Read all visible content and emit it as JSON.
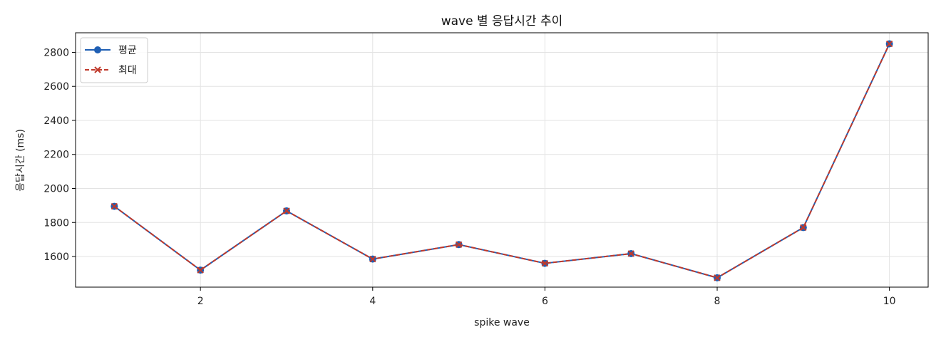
{
  "chart_data": {
    "type": "line",
    "title": "wave 별 응답시간 추이",
    "xlabel": "spike wave",
    "ylabel": "응답시간 (ms)",
    "x": [
      1,
      2,
      3,
      4,
      5,
      6,
      7,
      8,
      9,
      10
    ],
    "xlim": [
      0.55,
      10.45
    ],
    "ylim": [
      1420,
      2915
    ],
    "xticks": [
      2,
      4,
      6,
      8,
      10
    ],
    "yticks": [
      1600,
      1800,
      2000,
      2200,
      2400,
      2600,
      2800
    ],
    "grid": true,
    "legend_position": "top-left",
    "series": [
      {
        "name": "평균",
        "values": [
          1895,
          1520,
          1868,
          1585,
          1670,
          1560,
          1617,
          1475,
          1770,
          2850
        ],
        "color": "#1f5fb4",
        "line_style": "solid",
        "marker": "circle"
      },
      {
        "name": "최대",
        "values": [
          1895,
          1520,
          1868,
          1585,
          1670,
          1560,
          1617,
          1475,
          1770,
          2850
        ],
        "color": "#c0392b",
        "line_style": "dashed",
        "marker": "x"
      }
    ]
  }
}
